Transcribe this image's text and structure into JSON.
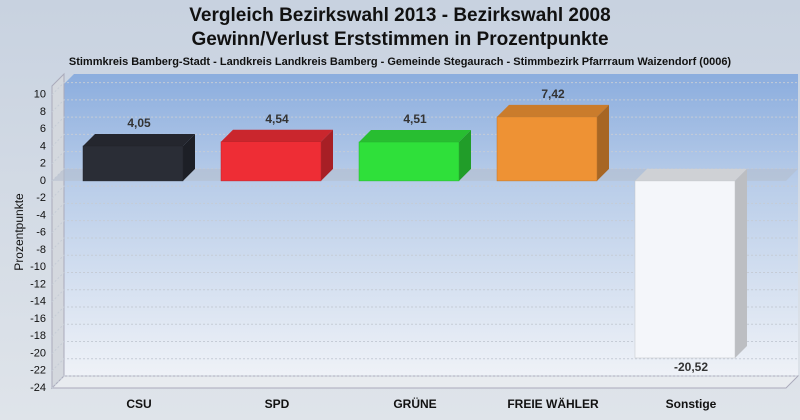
{
  "chart_data": {
    "type": "bar",
    "title": "Vergleich Bezirkswahl 2013 - Bezirkswahl 2008",
    "subtitle": "Gewinn/Verlust Erststimmen in Prozentpunkte",
    "description": "Stimmkreis Bamberg-Stadt - Landkreis Landkreis Bamberg - Gemeinde Stegaurach - Stimmbezirk Pfarrraum Waizendorf (0006)",
    "y_label": "Prozentpunkte",
    "categories": [
      "CSU",
      "SPD",
      "GRÜNE",
      "FREIE WÄHLER",
      "Sonstige"
    ],
    "values": [
      4.05,
      4.54,
      4.51,
      7.42,
      -20.52
    ],
    "value_labels": [
      "4,05",
      "4,54",
      "4,51",
      "7,42",
      "-20,52"
    ],
    "colors": [
      "#2a2d36",
      "#ee2d35",
      "#2fe03a",
      "#ee9234",
      "#f4f6fa"
    ],
    "ylim": [
      -24,
      11
    ],
    "yticks": [
      10,
      8,
      6,
      4,
      2,
      0,
      -2,
      -4,
      -6,
      -8,
      -10,
      -12,
      -14,
      -16,
      -18,
      -20,
      -22,
      -24
    ],
    "grid": true
  }
}
